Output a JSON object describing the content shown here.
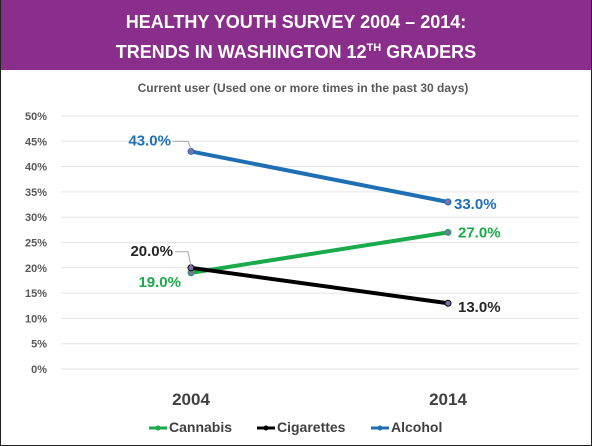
{
  "header": {
    "title_line1": "HEALTHY YOUTH SURVEY 2004 – 2014:",
    "title_line2_pre": "TRENDS IN WASHINGTON 12",
    "title_line2_sup": "TH",
    "title_line2_post": " GRADERS"
  },
  "chart_data": {
    "type": "line",
    "title": "Current user (Used one or more times in the past 30 days)",
    "categories": [
      "2004",
      "2014"
    ],
    "ylim": [
      0,
      50
    ],
    "y_ticks": [
      {
        "value": 0,
        "label": "0%"
      },
      {
        "value": 5,
        "label": "5%"
      },
      {
        "value": 10,
        "label": "10%"
      },
      {
        "value": 15,
        "label": "15%"
      },
      {
        "value": 20,
        "label": "20%"
      },
      {
        "value": 25,
        "label": "25%"
      },
      {
        "value": 30,
        "label": "30%"
      },
      {
        "value": 35,
        "label": "35%"
      },
      {
        "value": 40,
        "label": "40%"
      },
      {
        "value": 45,
        "label": "45%"
      },
      {
        "value": 50,
        "label": "50%"
      }
    ],
    "grid": true,
    "legend_position": "bottom",
    "series": [
      {
        "name": "Cannabis",
        "color": "#1aaa4b",
        "values": [
          19.0,
          27.0
        ],
        "labels": [
          "19.0%",
          "27.0%"
        ]
      },
      {
        "name": "Cigarettes",
        "color": "#000000",
        "values": [
          20.0,
          13.0
        ],
        "labels": [
          "20.0%",
          "13.0%"
        ]
      },
      {
        "name": "Alcohol",
        "color": "#1f6fb5",
        "values": [
          43.0,
          33.0
        ],
        "labels": [
          "43.0%",
          "33.0%"
        ]
      }
    ]
  }
}
